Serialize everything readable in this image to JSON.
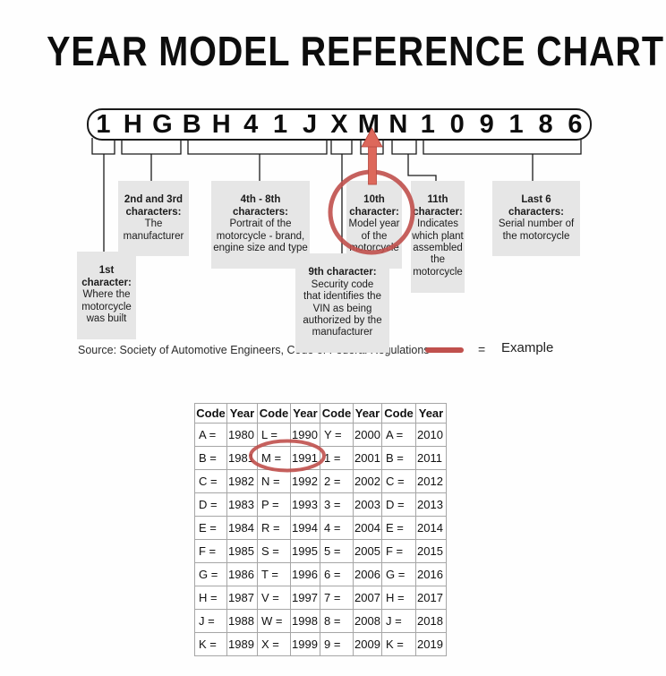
{
  "title": "YEAR MODEL REFERENCE CHART",
  "vin": {
    "characters": [
      "1",
      "H",
      "G",
      "B",
      "H",
      "4",
      "1",
      "J",
      "X",
      "M",
      "N",
      "1",
      "0",
      "9",
      "1",
      "8",
      "6"
    ]
  },
  "callouts": [
    {
      "heading": "1st\ncharacter:",
      "body": "Where the\nmotorcycle\nwas built"
    },
    {
      "heading": "2nd and 3rd\ncharacters:",
      "body": "The\nmanufacturer"
    },
    {
      "heading": "4th - 8th\ncharacters:",
      "body": "Portrait of the\nmotorcycle - brand,\nengine size and type"
    },
    {
      "heading": "9th character:",
      "body": "Security code\nthat identifies the\nVIN as being\nauthorized by the\nmanufacturer"
    },
    {
      "heading": "10th\ncharacter:",
      "body": "Model year\nof the\nmotorcycle"
    },
    {
      "heading": "11th\ncharacter:",
      "body": "Indicates\nwhich plant\nassembled\nthe\nmotorcycle"
    },
    {
      "heading": "Last 6\ncharacters:",
      "body": "Serial number of\nthe motorcycle"
    }
  ],
  "source_line": "Source:  Society of Automotive Engineers, Code of Federal Regulations",
  "legend": {
    "equals_sign": "=",
    "label": "Example",
    "swatch_color": "#c0504d"
  },
  "example_highlights": {
    "vin_character": "M",
    "table_cell": "M = 1991"
  },
  "colors": {
    "accent_red": "#c0504d",
    "callout_bg": "#e6e6e6"
  },
  "year_table": {
    "headers": [
      "Code",
      "Year",
      "Code",
      "Year",
      "Code",
      "Year",
      "Code",
      "Year"
    ],
    "rows": [
      [
        "A =",
        "1980",
        "L =",
        "1990",
        "Y =",
        "2000",
        "A =",
        "2010"
      ],
      [
        "B =",
        "1981",
        "M =",
        "1991",
        "1 =",
        "2001",
        "B =",
        "2011"
      ],
      [
        "C =",
        "1982",
        "N =",
        "1992",
        "2 =",
        "2002",
        "C =",
        "2012"
      ],
      [
        "D =",
        "1983",
        "P =",
        "1993",
        "3 =",
        "2003",
        "D =",
        "2013"
      ],
      [
        "E =",
        "1984",
        "R =",
        "1994",
        "4 =",
        "2004",
        "E =",
        "2014"
      ],
      [
        "F =",
        "1985",
        "S =",
        "1995",
        "5 =",
        "2005",
        "F =",
        "2015"
      ],
      [
        "G =",
        "1986",
        "T =",
        "1996",
        "6 =",
        "2006",
        "G =",
        "2016"
      ],
      [
        "H =",
        "1987",
        "V =",
        "1997",
        "7 =",
        "2007",
        "H =",
        "2017"
      ],
      [
        "J =",
        "1988",
        "W =",
        "1998",
        "8 =",
        "2008",
        "J =",
        "2018"
      ],
      [
        "K =",
        "1989",
        "X =",
        "1999",
        "9 =",
        "2009",
        "K =",
        "2019"
      ]
    ]
  }
}
